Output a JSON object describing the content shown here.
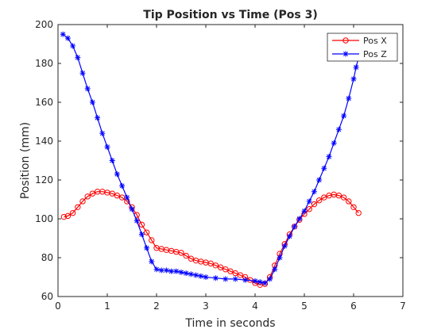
{
  "chart_data": {
    "type": "line",
    "title": "Tip Position vs Time (Pos 3)",
    "xlabel": "Time in seconds",
    "ylabel": "Position (mm)",
    "xlim": [
      0,
      7
    ],
    "ylim": [
      60,
      200
    ],
    "xticks": [
      "0",
      "1",
      "2",
      "3",
      "4",
      "5",
      "6",
      "7"
    ],
    "yticks": [
      "60",
      "80",
      "100",
      "120",
      "140",
      "160",
      "180",
      "200"
    ],
    "grid": false,
    "legend_position": "top-right",
    "series": [
      {
        "name": "Pos X",
        "color": "#ff0000",
        "marker": "circle",
        "points": [
          [
            0.12,
            101
          ],
          [
            0.2,
            101.5
          ],
          [
            0.3,
            103
          ],
          [
            0.4,
            106
          ],
          [
            0.5,
            109
          ],
          [
            0.6,
            111.5
          ],
          [
            0.7,
            113
          ],
          [
            0.8,
            114
          ],
          [
            0.9,
            114
          ],
          [
            1.0,
            113.5
          ],
          [
            1.1,
            113
          ],
          [
            1.2,
            112
          ],
          [
            1.3,
            111
          ],
          [
            1.4,
            109
          ],
          [
            1.5,
            106
          ],
          [
            1.6,
            102
          ],
          [
            1.7,
            97
          ],
          [
            1.8,
            93
          ],
          [
            1.9,
            89
          ],
          [
            2.0,
            85
          ],
          [
            2.1,
            84.5
          ],
          [
            2.2,
            84
          ],
          [
            2.3,
            83.5
          ],
          [
            2.4,
            83
          ],
          [
            2.5,
            82.5
          ],
          [
            2.6,
            81
          ],
          [
            2.7,
            79.5
          ],
          [
            2.8,
            78.5
          ],
          [
            2.9,
            78
          ],
          [
            3.0,
            77.5
          ],
          [
            3.1,
            77
          ],
          [
            3.2,
            76
          ],
          [
            3.3,
            75
          ],
          [
            3.4,
            74
          ],
          [
            3.5,
            73
          ],
          [
            3.6,
            72
          ],
          [
            3.7,
            71
          ],
          [
            3.8,
            70
          ],
          [
            3.9,
            68.5
          ],
          [
            4.0,
            67
          ],
          [
            4.1,
            66
          ],
          [
            4.2,
            66.5
          ],
          [
            4.3,
            70
          ],
          [
            4.4,
            76
          ],
          [
            4.5,
            82
          ],
          [
            4.6,
            87
          ],
          [
            4.7,
            92
          ],
          [
            4.8,
            96
          ],
          [
            4.9,
            99.5
          ],
          [
            5.0,
            102.5
          ],
          [
            5.1,
            105
          ],
          [
            5.2,
            107.5
          ],
          [
            5.3,
            109.5
          ],
          [
            5.4,
            111
          ],
          [
            5.5,
            112
          ],
          [
            5.6,
            112.5
          ],
          [
            5.7,
            112
          ],
          [
            5.8,
            111
          ],
          [
            5.9,
            109
          ],
          [
            6.0,
            106
          ],
          [
            6.1,
            103
          ]
        ]
      },
      {
        "name": "Pos Z",
        "color": "#0000ff",
        "marker": "asterisk",
        "points": [
          [
            0.1,
            195
          ],
          [
            0.2,
            193
          ],
          [
            0.3,
            189
          ],
          [
            0.4,
            183
          ],
          [
            0.5,
            175
          ],
          [
            0.6,
            167
          ],
          [
            0.7,
            160
          ],
          [
            0.8,
            152
          ],
          [
            0.9,
            144
          ],
          [
            1.0,
            137
          ],
          [
            1.1,
            130
          ],
          [
            1.2,
            123
          ],
          [
            1.3,
            117
          ],
          [
            1.4,
            111
          ],
          [
            1.5,
            105
          ],
          [
            1.6,
            99
          ],
          [
            1.7,
            92
          ],
          [
            1.8,
            85
          ],
          [
            1.9,
            78
          ],
          [
            2.0,
            74
          ],
          [
            2.1,
            73.5
          ],
          [
            2.2,
            73.5
          ],
          [
            2.3,
            73
          ],
          [
            2.4,
            73
          ],
          [
            2.5,
            72.5
          ],
          [
            2.6,
            72
          ],
          [
            2.7,
            71.5
          ],
          [
            2.8,
            71
          ],
          [
            2.9,
            70.5
          ],
          [
            3.0,
            70
          ],
          [
            3.2,
            69.5
          ],
          [
            3.4,
            69
          ],
          [
            3.6,
            69
          ],
          [
            3.8,
            68.5
          ],
          [
            4.0,
            68
          ],
          [
            4.1,
            67.5
          ],
          [
            4.2,
            67
          ],
          [
            4.3,
            69
          ],
          [
            4.4,
            74
          ],
          [
            4.5,
            80
          ],
          [
            4.6,
            86
          ],
          [
            4.7,
            91
          ],
          [
            4.8,
            96
          ],
          [
            4.9,
            100
          ],
          [
            5.0,
            104
          ],
          [
            5.1,
            109
          ],
          [
            5.2,
            114
          ],
          [
            5.3,
            120
          ],
          [
            5.4,
            126
          ],
          [
            5.5,
            132
          ],
          [
            5.6,
            139
          ],
          [
            5.7,
            146
          ],
          [
            5.8,
            153
          ],
          [
            5.9,
            162
          ],
          [
            6.0,
            172
          ],
          [
            6.05,
            178
          ],
          [
            6.1,
            183
          ]
        ]
      }
    ]
  }
}
